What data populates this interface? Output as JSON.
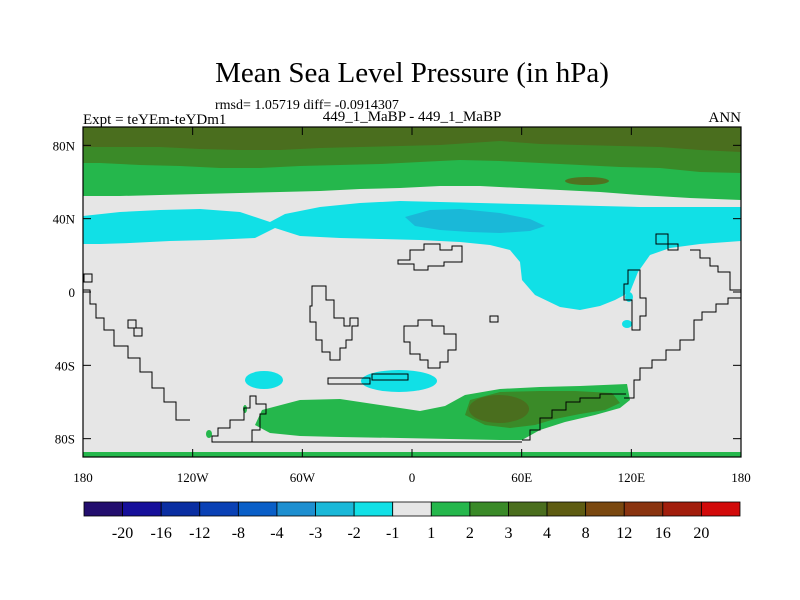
{
  "chart_data": {
    "type": "contour_map",
    "title": "Mean Sea Level Pressure (in hPa)",
    "stats_label": "rmsd= 1.05719 diff= -0.0914307",
    "subtitle": "449_1_MaBP - 449_1_MaBP",
    "left_label": "Expt = teYEm-teYDm1",
    "right_label": "ANN",
    "x_ticks": [
      "180",
      "120W",
      "60W",
      "0",
      "60E",
      "120E",
      "180"
    ],
    "y_ticks": [
      "80N",
      "40N",
      "0",
      "40S",
      "80S"
    ],
    "xlim": [
      -180,
      180
    ],
    "ylim": [
      -90,
      90
    ],
    "colorbar": {
      "colors": [
        "#230e6e",
        "#160f9a",
        "#0a2ea2",
        "#0a41b5",
        "#0a5fc8",
        "#1e8fd0",
        "#1ab8d8",
        "#11e0e6",
        "#e6e6e6",
        "#25b74c",
        "#3a8a28",
        "#4a6e1e",
        "#5e5c12",
        "#7a4810",
        "#8a3410",
        "#a21e0c",
        "#d20a0a"
      ],
      "labels": [
        "-20",
        "-16",
        "-12",
        "-8",
        "-4",
        "-3",
        "-2",
        "-1",
        "1",
        "2",
        "3",
        "4",
        "8",
        "12",
        "16",
        "20"
      ]
    }
  }
}
